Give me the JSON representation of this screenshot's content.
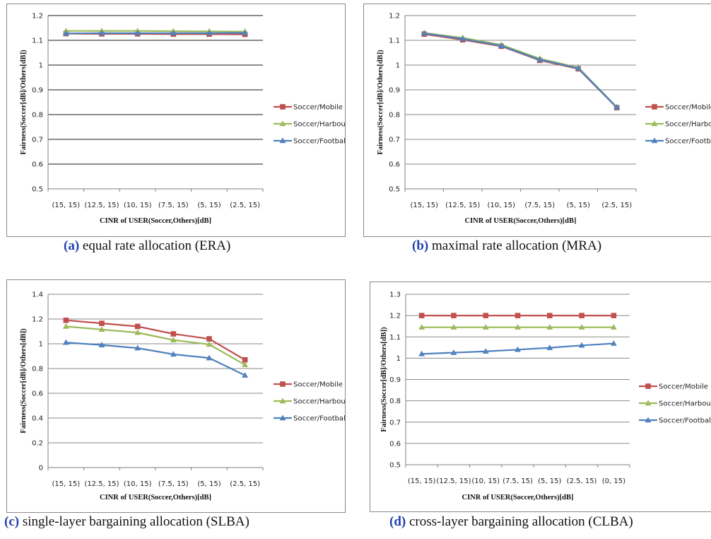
{
  "chart_data": [
    {
      "id": "a",
      "type": "line",
      "caption_letter": "(a)",
      "caption_text": " equal rate allocation (ERA)",
      "categories": [
        "(15, 15)",
        "(12.5, 15)",
        "(10, 15)",
        "(7.5, 15)",
        "(5, 15)",
        "(2.5, 15)"
      ],
      "series": [
        {
          "name": "Soccer/Mobile",
          "color": "#c0504d",
          "marker": "square",
          "values": [
            1.127,
            1.126,
            1.126,
            1.125,
            1.125,
            1.124
          ]
        },
        {
          "name": "Soccer/Harbour",
          "color": "#9bbb59",
          "marker": "triangle",
          "values": [
            1.138,
            1.138,
            1.138,
            1.137,
            1.136,
            1.135
          ]
        },
        {
          "name": "Soccer/Football",
          "color": "#4f81bd",
          "marker": "triangle",
          "values": [
            1.128,
            1.129,
            1.129,
            1.129,
            1.129,
            1.13
          ]
        }
      ],
      "yticks": [
        "1.2",
        "1.1",
        "1",
        "0.9",
        "0.8",
        "0.7",
        "0.6",
        "0.5"
      ],
      "ylim": [
        0.5,
        1.2
      ],
      "ystep": 0.1,
      "gridlines": "thick-gray",
      "xlabel": "CINR of USER(Soccer,Others)[dB]",
      "ylabel": "Fairness(Soccer[dB]/Others[dB])",
      "legend_position": "right"
    },
    {
      "id": "b",
      "type": "line",
      "caption_letter": "(b)",
      "caption_text": " maximal rate allocation (MRA)",
      "categories": [
        "(15, 15)",
        "(12.5, 15)",
        "(10, 15)",
        "(7.5, 15)",
        "(5, 15)",
        "(2.5, 15)"
      ],
      "series": [
        {
          "name": "Soccer/Mobile",
          "color": "#c0504d",
          "marker": "square",
          "values": [
            1.125,
            1.102,
            1.076,
            1.019,
            0.985,
            0.828
          ]
        },
        {
          "name": "Soccer/Harbour",
          "color": "#9bbb59",
          "marker": "triangle",
          "values": [
            1.13,
            1.11,
            1.082,
            1.026,
            0.99,
            0.83
          ]
        },
        {
          "name": "Soccer/Football",
          "color": "#4f81bd",
          "marker": "triangle",
          "values": [
            1.128,
            1.106,
            1.078,
            1.022,
            0.987,
            0.829
          ]
        }
      ],
      "yticks": [
        "1.2",
        "1.1",
        "1",
        "0.9",
        "0.8",
        "0.7",
        "0.6",
        "0.5"
      ],
      "ylim": [
        0.5,
        1.2
      ],
      "ystep": 0.1,
      "gridlines": "thin-gray",
      "xlabel": "CINR of USER(Soccer,Others)[dB]",
      "ylabel": "Fairness(Soccer[dB]/Others[dB])",
      "legend_position": "right"
    },
    {
      "id": "c",
      "type": "line",
      "caption_letter": "(c)",
      "caption_text": " single-layer bargaining allocation (SLBA)",
      "categories": [
        "(15, 15)",
        "(12.5, 15)",
        "(10, 15)",
        "(7.5, 15)",
        "(5, 15)",
        "(2.5, 15)"
      ],
      "series": [
        {
          "name": "Soccer/Mobile",
          "color": "#c0504d",
          "marker": "square",
          "values": [
            1.19,
            1.165,
            1.14,
            1.08,
            1.04,
            0.87
          ]
        },
        {
          "name": "Soccer/Harbour",
          "color": "#9bbb59",
          "marker": "triangle",
          "values": [
            1.14,
            1.115,
            1.09,
            1.03,
            0.995,
            0.83
          ]
        },
        {
          "name": "Soccer/Football",
          "color": "#4f81bd",
          "marker": "triangle",
          "values": [
            1.01,
            0.99,
            0.965,
            0.915,
            0.885,
            0.745
          ]
        }
      ],
      "yticks": [
        "1.4",
        "1.2",
        "1",
        "0.8",
        "0.6",
        "0.4",
        "0.2",
        "0"
      ],
      "ylim": [
        0,
        1.4
      ],
      "ystep": 0.2,
      "gridlines": "thin-gray",
      "xlabel": "CINR of USER(Soccer,Others)[dB]",
      "ylabel": "Fairness(Soccer[dB]/Others[dB])",
      "legend_position": "right"
    },
    {
      "id": "d",
      "type": "line",
      "caption_letter": "(d)",
      "caption_text": " cross-layer bargaining allocation (CLBA)",
      "categories": [
        "(15, 15)",
        "(12.5, 15)",
        "(10, 15)",
        "(7.5, 15)",
        "(5, 15)",
        "(2.5, 15)",
        "(0, 15)"
      ],
      "series": [
        {
          "name": "Soccer/Mobile",
          "color": "#c0504d",
          "marker": "square",
          "values": [
            1.2,
            1.2,
            1.2,
            1.2,
            1.2,
            1.2,
            1.2
          ]
        },
        {
          "name": "Soccer/Harbour",
          "color": "#9bbb59",
          "marker": "triangle",
          "values": [
            1.145,
            1.145,
            1.145,
            1.145,
            1.145,
            1.145,
            1.145
          ]
        },
        {
          "name": "Soccer/Football",
          "color": "#4f81bd",
          "marker": "triangle",
          "values": [
            1.02,
            1.026,
            1.032,
            1.04,
            1.049,
            1.06,
            1.069
          ]
        }
      ],
      "yticks": [
        "1.3",
        "1.2",
        "1.1",
        "1",
        "0.9",
        "0.8",
        "0.7",
        "0.6",
        "0.5"
      ],
      "ylim": [
        0.5,
        1.3
      ],
      "ystep": 0.1,
      "gridlines": "thin-gray",
      "xlabel": "CINR of USER(Soccer,Others)[dB]",
      "ylabel": "Fairness(Soccer[dB]/Others[dB])",
      "legend_position": "right"
    }
  ]
}
